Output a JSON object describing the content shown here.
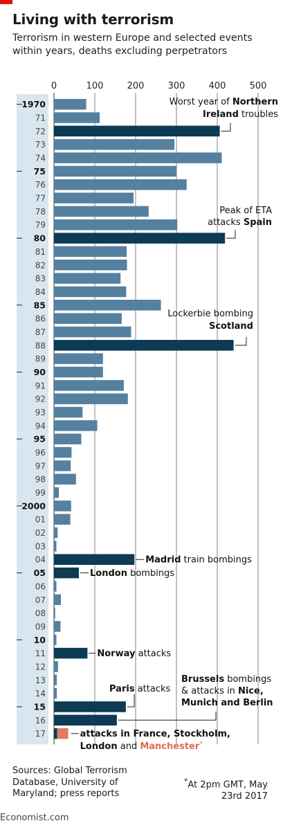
{
  "header": {
    "title": "Living with terrorism",
    "subtitle": "Terrorism in western Europe and selected events within years, deaths excluding perpetrators"
  },
  "footer": {
    "sources": "Sources: Global Terrorism Database, University of Maryland; press reports",
    "footnote_marker": "*",
    "footnote": "At 2pm GMT, May 23rd 2017",
    "credit": "Economist.com"
  },
  "colors": {
    "normal_bar": "#5580a0",
    "highlight_bar": "#0d3a55",
    "partial_bar": "#e07b62",
    "axis_panel": "#d9e6ef",
    "accent_text": "#e06a50",
    "grid": "#555555"
  },
  "chart_data": {
    "type": "bar",
    "orientation": "horizontal",
    "title": "Living with terrorism",
    "subtitle": "Terrorism in western Europe and selected events within years, deaths excluding perpetrators",
    "xlim": [
      0,
      500
    ],
    "xticks": [
      0,
      100,
      200,
      300,
      400,
      500
    ],
    "grid": true,
    "categories": [
      "1970",
      "71",
      "72",
      "73",
      "74",
      "75",
      "76",
      "77",
      "78",
      "79",
      "80",
      "81",
      "82",
      "83",
      "84",
      "85",
      "86",
      "87",
      "88",
      "89",
      "90",
      "91",
      "92",
      "93",
      "94",
      "95",
      "96",
      "97",
      "98",
      "99",
      "2000",
      "01",
      "02",
      "03",
      "04",
      "05",
      "06",
      "07",
      "08",
      "09",
      "10",
      "11",
      "12",
      "13",
      "14",
      "15",
      "16",
      "17"
    ],
    "values": [
      79,
      112,
      406,
      295,
      411,
      300,
      325,
      195,
      232,
      302,
      419,
      178,
      179,
      163,
      177,
      262,
      166,
      189,
      440,
      120,
      120,
      171,
      181,
      70,
      106,
      67,
      43,
      41,
      54,
      12,
      42,
      40,
      9,
      6,
      197,
      61,
      6,
      17,
      3,
      16,
      6,
      82,
      10,
      7,
      7,
      176,
      154,
      35
    ],
    "highlight_years": [
      "72",
      "80",
      "88",
      "04",
      "05",
      "11",
      "15",
      "16",
      "17"
    ],
    "bold_year_labels": [
      "1970",
      "75",
      "80",
      "85",
      "90",
      "95",
      "2000",
      "05",
      "10",
      "15"
    ],
    "annotations": [
      {
        "year": "72",
        "text": "Worst year of Northern Ireland troubles"
      },
      {
        "year": "80",
        "text": "Peak of ETA attacks Spain"
      },
      {
        "year": "88",
        "text": "Lockerbie bombing Scotland"
      },
      {
        "year": "04",
        "text": "Madrid train bombings"
      },
      {
        "year": "05",
        "text": "London bombings"
      },
      {
        "year": "11",
        "text": "Norway attacks"
      },
      {
        "year": "15",
        "text": "Paris attacks"
      },
      {
        "year": "16",
        "text": "Brussels bombings & attacks in Nice, Munich and Berlin"
      },
      {
        "year": "17",
        "text": "attacks in France, Stockholm, London and Manchester*"
      }
    ]
  },
  "annotation_lines": {
    "a72": [
      [
        {
          "t": "Worst year of "
        },
        {
          "t": "Northern",
          "b": true
        }
      ],
      [
        {
          "t": "Ireland",
          "b": true
        },
        {
          "t": " troubles"
        }
      ]
    ],
    "a80": [
      [
        {
          "t": "Peak of ETA"
        }
      ],
      [
        {
          "t": "attacks "
        },
        {
          "t": "Spain",
          "b": true
        }
      ]
    ],
    "a88": [
      [
        {
          "t": "Lockerbie bombing"
        }
      ],
      [
        {
          "t": "Scotland",
          "b": true
        }
      ]
    ],
    "a04": [
      [
        {
          "t": "Madrid",
          "b": true
        },
        {
          "t": " train bombings"
        }
      ]
    ],
    "a05": [
      [
        {
          "t": "London",
          "b": true
        },
        {
          "t": " bombings"
        }
      ]
    ],
    "a11": [
      [
        {
          "t": "Norway",
          "b": true
        },
        {
          "t": " attacks"
        }
      ]
    ],
    "a15": [
      [
        {
          "t": "Paris",
          "b": true
        },
        {
          "t": " attacks"
        }
      ]
    ],
    "a16": [
      [
        {
          "t": "Brussels",
          "b": true
        },
        {
          "t": " bombings"
        }
      ],
      [
        {
          "t": "& attacks in "
        },
        {
          "t": "Nice,",
          "b": true
        }
      ],
      [
        {
          "t": "Munich and Berlin",
          "b": true
        }
      ]
    ],
    "a17": [
      [
        {
          "t": "attacks in France, Stockholm,",
          "b": true
        }
      ],
      [
        {
          "t": "London",
          "b": true
        },
        {
          "t": " and "
        },
        {
          "t": "Manchester",
          "b": true,
          "accent": true
        },
        {
          "t": "*",
          "sup": true,
          "accent": true
        }
      ]
    ]
  }
}
